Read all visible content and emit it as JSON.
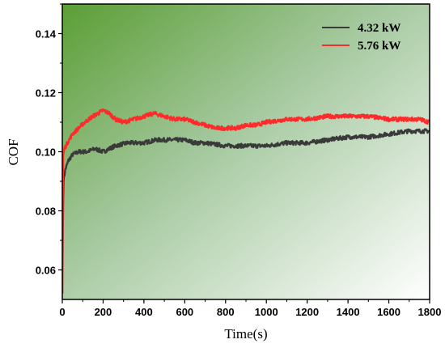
{
  "chart_data": {
    "type": "line",
    "xlabel": "Time(s)",
    "ylabel": "COF",
    "xlim": [
      0,
      1800
    ],
    "ylim": [
      0.05,
      0.15
    ],
    "x_ticks": [
      "0",
      "200",
      "400",
      "600",
      "800",
      "1000",
      "1200",
      "1400",
      "1600",
      "1800"
    ],
    "y_ticks": [
      "0.06",
      "0.08",
      "0.10",
      "0.12",
      "0.14"
    ],
    "legend_position": "top-right",
    "background": "green-to-white gradient from top-left",
    "series": [
      {
        "name": "4.32 kW",
        "color": "#3a3a3a",
        "x": [
          0,
          5,
          15,
          30,
          50,
          80,
          120,
          160,
          200,
          260,
          320,
          400,
          460,
          520,
          560,
          600,
          650,
          700,
          800,
          900,
          1000,
          1100,
          1200,
          1300,
          1400,
          1500,
          1600,
          1700,
          1750,
          1800
        ],
        "y": [
          0.052,
          0.09,
          0.094,
          0.097,
          0.099,
          0.1,
          0.1,
          0.101,
          0.1,
          0.102,
          0.103,
          0.103,
          0.104,
          0.104,
          0.104,
          0.104,
          0.103,
          0.103,
          0.102,
          0.102,
          0.102,
          0.103,
          0.103,
          0.104,
          0.105,
          0.105,
          0.106,
          0.107,
          0.107,
          0.107
        ]
      },
      {
        "name": "5.76 kW",
        "color": "#ff2a2a",
        "x": [
          0,
          3,
          10,
          25,
          50,
          80,
          110,
          150,
          200,
          230,
          260,
          300,
          350,
          400,
          450,
          500,
          550,
          600,
          650,
          700,
          750,
          800,
          850,
          900,
          950,
          1000,
          1100,
          1200,
          1300,
          1400,
          1500,
          1600,
          1700,
          1750,
          1800
        ],
        "y": [
          0.052,
          0.098,
          0.101,
          0.103,
          0.106,
          0.108,
          0.11,
          0.112,
          0.114,
          0.113,
          0.111,
          0.11,
          0.111,
          0.112,
          0.113,
          0.112,
          0.111,
          0.111,
          0.11,
          0.109,
          0.108,
          0.108,
          0.108,
          0.109,
          0.109,
          0.11,
          0.111,
          0.111,
          0.112,
          0.112,
          0.112,
          0.111,
          0.111,
          0.111,
          0.11
        ]
      }
    ]
  }
}
